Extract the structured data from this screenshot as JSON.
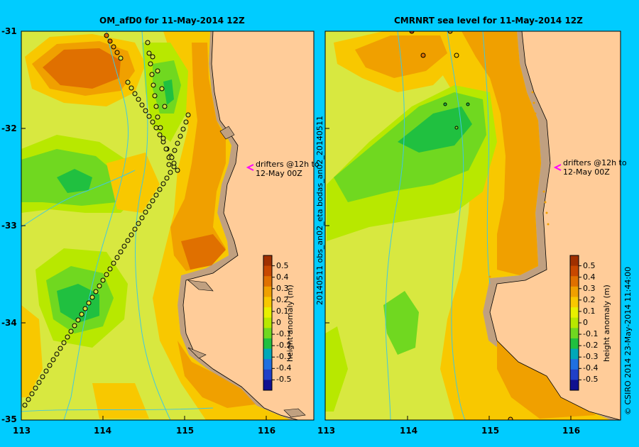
{
  "left_panel": {
    "title": "OM_afD0 for 11-May-2014 12Z",
    "annotation_line1": "drifters @12h to",
    "annotation_line2": "12-May 00Z",
    "colorbar_label": "height anomaly (m)"
  },
  "right_panel": {
    "title": "CMRNRT sea level  for 11-May-2014 12Z",
    "annotation_line1": "drifters @12h to",
    "annotation_line2": "12-May 00Z",
    "colorbar_label": "height anomaly (m)"
  },
  "side_label": "20140511 obs_an02_eta    bodas_an02_20140511",
  "credit": "© CSIRO 2014   23-May-2014 11:44:00",
  "y_ticks": [
    "-31",
    "-32",
    "-33",
    "-34",
    "-35"
  ],
  "x_ticks": [
    "113",
    "114",
    "115",
    "116"
  ],
  "colorbar_ticks": [
    "0.5",
    "0.4",
    "0.3",
    "0.2",
    "0.1",
    "0",
    "-0.1",
    "-0.2",
    "-0.3",
    "-0.4",
    "-0.5"
  ],
  "colorbar_colors": [
    "#a03000",
    "#c84800",
    "#e07000",
    "#f0a000",
    "#f8c800",
    "#e8f000",
    "#b8e800",
    "#70d820",
    "#20c040",
    "#00a8b8",
    "#2070e0",
    "#2040c8",
    "#101090"
  ],
  "colors": {
    "land": "#ffcc99",
    "coast": "#c0a080",
    "background": "#00ccff",
    "marker": "#ff00ff"
  }
}
